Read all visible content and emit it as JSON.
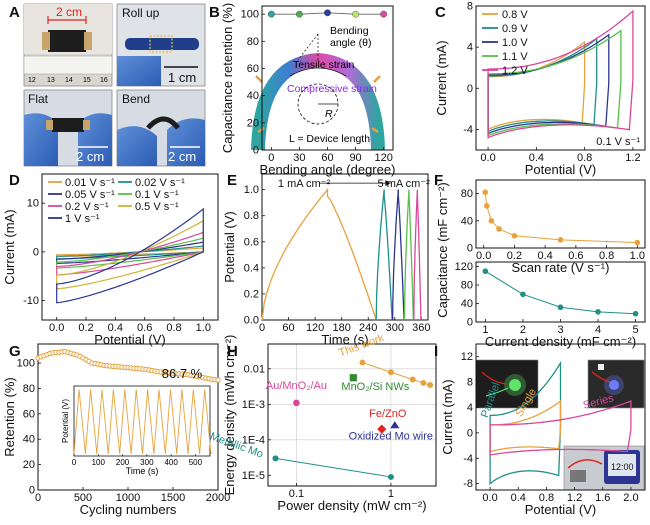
{
  "panels": {
    "A": {
      "label": "A",
      "photos": [
        {
          "caption": "",
          "measure": "2 cm",
          "ruler_ticks": [
            "12",
            "13",
            "14",
            "15",
            "16"
          ]
        },
        {
          "caption": "Roll up",
          "scale": "1 cm"
        },
        {
          "caption": "Flat",
          "scale": "2 cm"
        },
        {
          "caption": "Bend",
          "scale": "2 cm"
        }
      ]
    },
    "B": {
      "label": "B"
    },
    "C": {
      "label": "C"
    },
    "D": {
      "label": "D"
    },
    "E": {
      "label": "E"
    },
    "F": {
      "label": "F"
    },
    "G": {
      "label": "G"
    },
    "H": {
      "label": "H"
    },
    "I": {
      "label": "I",
      "photos": 3
    }
  },
  "chart_data": [
    {
      "id": "B",
      "type": "scatter",
      "xlabel": "Bending angle (degree)",
      "ylabel": "Capacitance retention (%)",
      "xlim": [
        -10,
        130
      ],
      "ylim": [
        0,
        106
      ],
      "xticks": [
        "0",
        "30",
        "60",
        "90",
        "120"
      ],
      "yticks": [
        "0",
        "20",
        "40",
        "60",
        "80",
        "100"
      ],
      "x": [
        0,
        30,
        60,
        90,
        120
      ],
      "y": [
        100,
        100,
        101,
        100,
        100
      ],
      "point_colors": [
        "#2fa5a0",
        "#4caf50",
        "#2d3e9e",
        "#b5e86a",
        "#e04aa8"
      ],
      "annotations": {
        "bending": "Bending",
        "angle": "angle (θ)",
        "tensile": "Tensile strain",
        "compressive": "Compressive strain",
        "radius": "R",
        "length": "L = Device length"
      }
    },
    {
      "id": "C",
      "type": "line",
      "xlabel": "Potential (V)",
      "ylabel": "Current (mA)",
      "xlim": [
        -0.1,
        1.3
      ],
      "ylim": [
        -6,
        8
      ],
      "xticks": [
        "0.0",
        "0.4",
        "0.8",
        "1.2"
      ],
      "yticks": [
        "-4",
        "0",
        "4",
        "8"
      ],
      "scan_note": "0.1 V s⁻¹",
      "series": [
        {
          "name": "0.8 V",
          "vmax": 0.8,
          "imax": 4.5,
          "imin": -4.0,
          "color": "#e6a23c"
        },
        {
          "name": "0.9 V",
          "vmax": 0.9,
          "imax": 4.8,
          "imin": -4.2,
          "color": "#1f8f8a"
        },
        {
          "name": "1.0 V",
          "vmax": 1.0,
          "imax": 5.2,
          "imin": -4.4,
          "color": "#2c3592"
        },
        {
          "name": "1.1 V",
          "vmax": 1.1,
          "imax": 5.6,
          "imin": -4.6,
          "color": "#56c04b"
        },
        {
          "name": "1.2 V",
          "vmax": 1.2,
          "imax": 7.5,
          "imin": -4.8,
          "color": "#d9479a"
        }
      ]
    },
    {
      "id": "D",
      "type": "line",
      "xlabel": "Potential (V)",
      "ylabel": "Current (mA)",
      "xlim": [
        -0.1,
        1.1
      ],
      "ylim": [
        -14,
        16
      ],
      "xticks": [
        "0.0",
        "0.2",
        "0.4",
        "0.6",
        "0.8",
        "1.0"
      ],
      "yticks": [
        "-10",
        "0",
        "10"
      ],
      "series": [
        {
          "name": "0.01 V s⁻¹",
          "a": 1.0,
          "color": "#e6a23c"
        },
        {
          "name": "0.02 V s⁻¹",
          "a": 1.5,
          "color": "#1f8f8a"
        },
        {
          "name": "0.05 V s⁻¹",
          "a": 2.5,
          "color": "#2c3592"
        },
        {
          "name": "0.1 V s⁻¹",
          "a": 3.5,
          "color": "#56c04b"
        },
        {
          "name": "0.2 V s⁻¹",
          "a": 5.0,
          "color": "#d9479a"
        },
        {
          "name": "0.5 V s⁻¹",
          "a": 8.0,
          "color": "#d0b534"
        },
        {
          "name": "1 V s⁻¹",
          "a": 11.0,
          "color": "#2c3592"
        }
      ]
    },
    {
      "id": "E",
      "type": "line",
      "xlabel": "Time (s)",
      "ylabel": "Potential (V)",
      "xlim": [
        0,
        375
      ],
      "ylim": [
        0,
        1.12
      ],
      "xticks": [
        "0",
        "60",
        "120",
        "180",
        "240",
        "300",
        "360"
      ],
      "yticks": [
        "0.0",
        "0.2",
        "0.4",
        "0.6",
        "0.8",
        "1.0"
      ],
      "annotations": {
        "low": "1 mA cm⁻²",
        "high": "5 mA cm⁻²"
      },
      "cycles": [
        {
          "t0": 0,
          "charge": 148,
          "discharge": 110,
          "color": "#e6a23c"
        },
        {
          "t0": 258,
          "charge": 18,
          "discharge": 18,
          "color": "#1f8f8a"
        },
        {
          "t0": 295,
          "charge": 13,
          "discharge": 13,
          "color": "#2c3592"
        },
        {
          "t0": 322,
          "charge": 10,
          "discharge": 10,
          "color": "#56c04b"
        },
        {
          "t0": 343,
          "charge": 8,
          "discharge": 8,
          "color": "#d9479a"
        }
      ]
    },
    {
      "id": "F1",
      "type": "scatter",
      "xlabel": "Scan rate (V s⁻¹)",
      "ylabel": "",
      "xlim": [
        -0.05,
        1.05
      ],
      "ylim": [
        0,
        100
      ],
      "xticks": [
        "0.0",
        "0.2",
        "0.4",
        "0.6",
        "0.8",
        "1.0"
      ],
      "yticks": [
        "0",
        "40",
        "80"
      ],
      "x": [
        0.01,
        0.02,
        0.05,
        0.1,
        0.2,
        0.5,
        1.0
      ],
      "y": [
        82,
        62,
        40,
        28,
        18,
        12,
        8
      ],
      "color": "#e6a23c"
    },
    {
      "id": "F2",
      "type": "scatter",
      "xlabel": "Current density (mF cm⁻²)",
      "ylabel": "",
      "shared_ylabel": "Capacitance (mF cm⁻²)",
      "xlim": [
        0.75,
        5.25
      ],
      "ylim": [
        0,
        130
      ],
      "xticks": [
        "1",
        "2",
        "3",
        "4",
        "5"
      ],
      "yticks": [
        "0",
        "40",
        "80",
        "120"
      ],
      "x": [
        1,
        2,
        3,
        4,
        5
      ],
      "y": [
        110,
        60,
        32,
        22,
        18
      ],
      "color": "#1f8f8a"
    },
    {
      "id": "G",
      "type": "scatter",
      "xlabel": "Cycling numbers",
      "ylabel": "Retention (%)",
      "xlim": [
        0,
        2000
      ],
      "ylim": [
        0,
        115
      ],
      "xticks": [
        "0",
        "500",
        "1000",
        "1500",
        "2000"
      ],
      "yticks": [
        "0",
        "20",
        "40",
        "60",
        "80",
        "100"
      ],
      "final_label": "86.7 %",
      "x": [
        0,
        150,
        300,
        450,
        600,
        750,
        900,
        1050,
        1200,
        1350,
        1500,
        1650,
        1800,
        1950,
        2000
      ],
      "y": [
        104,
        108,
        109,
        106,
        100,
        98,
        97,
        96,
        95,
        93,
        92,
        91,
        89,
        87,
        86.7
      ],
      "color": "#e6a23c",
      "inset": {
        "xlabel": "Time (s)",
        "ylabel": "Potential (V)",
        "xlim": [
          0,
          560
        ],
        "xticks": [
          "0",
          "100",
          "200",
          "300",
          "400",
          "500"
        ],
        "ylim": [
          0,
          1
        ],
        "period": 47,
        "cycles": 12
      }
    },
    {
      "id": "H",
      "type": "scatter",
      "xlabel": "Power density (mW cm⁻²)",
      "ylabel": "Energy density (mWh cm⁻²)",
      "xscale": "log",
      "yscale": "log",
      "xlim": [
        0.05,
        3
      ],
      "ylim": [
        5e-06,
        0.05
      ],
      "xticks": [
        "0.1",
        "1"
      ],
      "yticks": [
        "1E-5",
        "1E-4",
        "1E-3",
        "0.01"
      ],
      "series": [
        {
          "name": "This work",
          "x": [
            0.5,
            1.0,
            1.7,
            2.2,
            2.6
          ],
          "y": [
            0.015,
            0.008,
            0.005,
            0.004,
            0.0035
          ],
          "color": "#e6a23c",
          "marker": "circle"
        },
        {
          "name": "Au/MnO₂/Au",
          "x": [
            0.1
          ],
          "y": [
            0.0011
          ],
          "color": "#d9479a",
          "marker": "hexagon"
        },
        {
          "name": "MnO₂/Si NWs",
          "x": [
            0.4
          ],
          "y": [
            0.0056
          ],
          "color": "#2e8b2e",
          "marker": "square"
        },
        {
          "name": "Fe/ZnO",
          "x": [
            0.8
          ],
          "y": [
            0.0002
          ],
          "color": "#e0261f",
          "marker": "diamond"
        },
        {
          "name": "Oxidized Mo wire",
          "x": [
            1.1
          ],
          "y": [
            0.00025
          ],
          "color": "#2c3592",
          "marker": "triangle"
        },
        {
          "name": "Metallic Mo",
          "x": [
            0.06,
            1.0
          ],
          "y": [
            3e-05,
            9e-06
          ],
          "color": "#1f8f8a",
          "marker": "circle"
        }
      ]
    },
    {
      "id": "I",
      "type": "line",
      "xlabel": "Potential (V)",
      "ylabel": "Current (mA)",
      "xlim": [
        -0.2,
        2.2
      ],
      "ylim": [
        -9,
        14
      ],
      "xticks": [
        "0.0",
        "0.4",
        "0.8",
        "1.2",
        "1.6",
        "2.0"
      ],
      "yticks": [
        "-8",
        "-4",
        "0",
        "4",
        "8",
        "12"
      ],
      "series": [
        {
          "name": "Parallel",
          "vmax": 1.0,
          "imax": 11,
          "imin": -8,
          "color": "#1f8f8a"
        },
        {
          "name": "Single",
          "vmax": 1.0,
          "imax": 5,
          "imin": -3,
          "color": "#e6a23c"
        },
        {
          "name": "Series",
          "vmax": 2.0,
          "imax": 5,
          "imin": -3.5,
          "color": "#d9479a"
        }
      ]
    }
  ]
}
